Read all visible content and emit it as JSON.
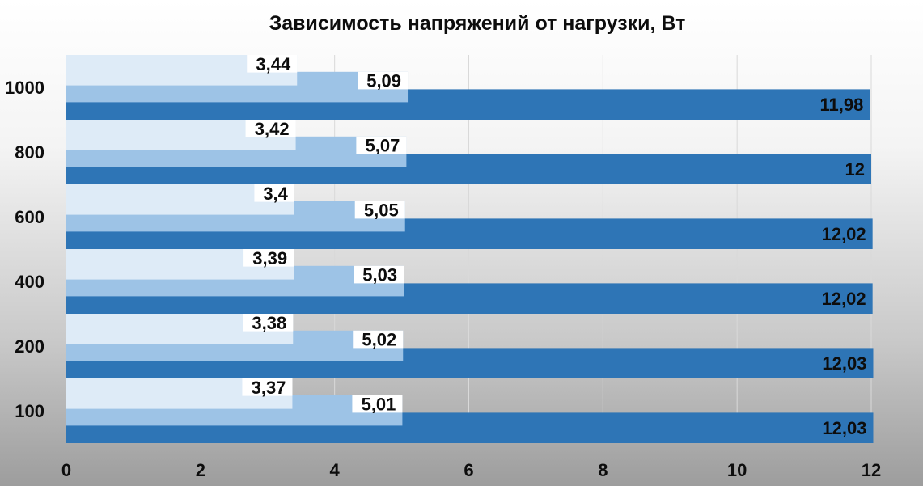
{
  "chart_data": {
    "type": "bar",
    "orientation": "horizontal",
    "title": "Зависимость напряжений от нагрузки, Вт",
    "xlabel": "",
    "ylabel": "",
    "categories": [
      "100",
      "200",
      "400",
      "600",
      "800",
      "1000"
    ],
    "series": [
      {
        "color": "#2e75b6",
        "values": [
          12.03,
          12.03,
          12.02,
          12.02,
          12,
          11.98
        ],
        "labels": [
          "12,03",
          "12,03",
          "12,02",
          "12,02",
          "12",
          "11,98"
        ]
      },
      {
        "color": "#9dc3e6",
        "values": [
          5.01,
          5.02,
          5.03,
          5.05,
          5.07,
          5.09
        ],
        "labels": [
          "5,01",
          "5,02",
          "5,03",
          "5,05",
          "5,07",
          "5,09"
        ]
      },
      {
        "color": "#deebf7",
        "values": [
          3.37,
          3.38,
          3.39,
          3.4,
          3.42,
          3.44
        ],
        "labels": [
          "3,37",
          "3,38",
          "3,39",
          "3,4",
          "3,42",
          "3,44"
        ]
      }
    ],
    "xlim": [
      0,
      12
    ],
    "xticks": [
      "0",
      "2",
      "4",
      "6",
      "8",
      "10",
      "12"
    ],
    "grid": true,
    "legend": "none"
  }
}
